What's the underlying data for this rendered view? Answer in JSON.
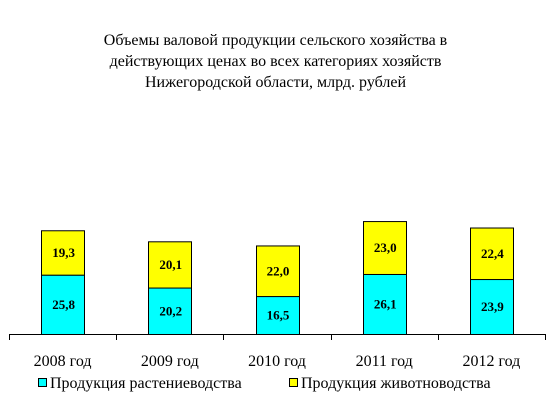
{
  "chart_data": {
    "type": "bar",
    "stacked": true,
    "title_lines": [
      "Объемы валовой продукции сельского хозяйства в",
      "действующих ценах во всех категориях хозяйств",
      "Нижегородской области, млрд. рублей"
    ],
    "categories": [
      "2008 год",
      "2009 год",
      "2010 год",
      "2011 год",
      "2012 год"
    ],
    "series": [
      {
        "name": "Продукция растениеводства",
        "color": "#00ffff",
        "values": [
          25.8,
          20.2,
          16.5,
          26.1,
          23.9
        ],
        "labels": [
          "25,8",
          "20,2",
          "16,5",
          "26,1",
          "23,9"
        ]
      },
      {
        "name": "Продукция животноводства",
        "color": "#ffff00",
        "values": [
          19.3,
          20.1,
          22.0,
          23.0,
          22.4
        ],
        "labels": [
          "19,3",
          "20,1",
          "22,0",
          "23,0",
          "22,4"
        ]
      }
    ],
    "ylim": [
      0,
      50
    ],
    "grid": false,
    "legend_position": "bottom"
  }
}
